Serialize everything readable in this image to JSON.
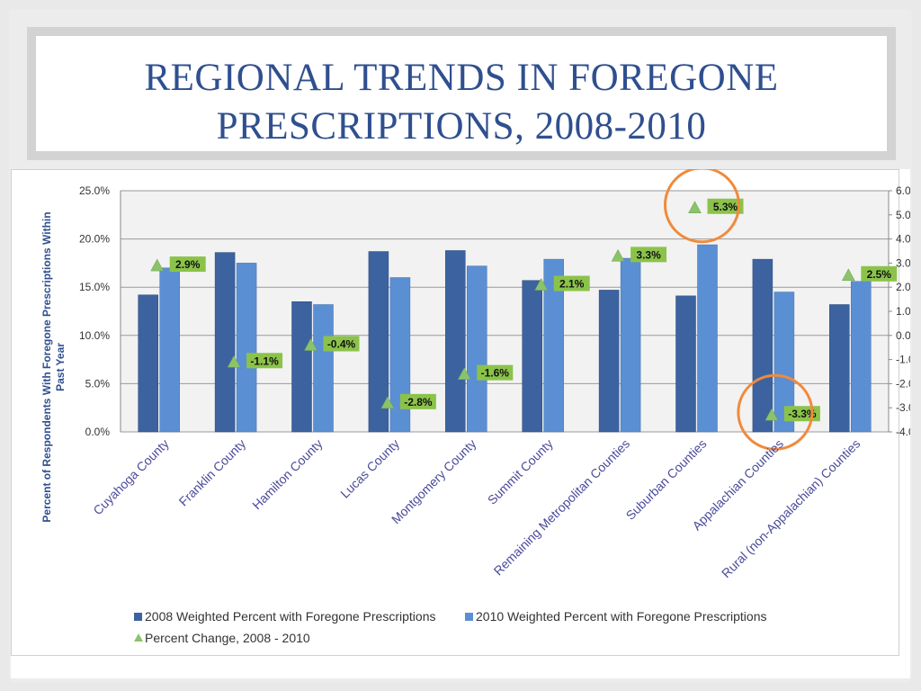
{
  "slide": {
    "title_line1": "REGIONAL TRENDS IN FOREGONE",
    "title_line2": "PRESCRIPTIONS, 2008-2010"
  },
  "colors": {
    "series_2008": "#3c63a0",
    "series_2010": "#5b8fd3",
    "change_marker": "#8bc36a",
    "label_bg": "#8bc34a",
    "highlight_circle": "#f08a3c",
    "title": "#2f4f8f"
  },
  "chart_data": {
    "type": "bar",
    "categories": [
      "Cuyahoga County",
      "Franklin County",
      "Hamilton County",
      "Lucas County",
      "Montgomery County",
      "Summit County",
      "Remaining Metropolitan Counties",
      "Suburban Counties",
      "Appalachian Counties",
      "Rural (non-Appalachian) Counties"
    ],
    "series": [
      {
        "name": "2008 Weighted Percent with Foregone Prescriptions",
        "axis": "left",
        "values": [
          14.2,
          18.6,
          13.5,
          18.7,
          18.8,
          15.7,
          14.7,
          14.1,
          17.9,
          13.2
        ]
      },
      {
        "name": "2010 Weighted Percent with Foregone Prescriptions",
        "axis": "left",
        "values": [
          17.0,
          17.5,
          13.2,
          16.0,
          17.2,
          17.9,
          18.0,
          19.4,
          14.5,
          15.6
        ]
      },
      {
        "name": "Percent Change, 2008 - 2010",
        "axis": "right",
        "values": [
          2.9,
          -1.1,
          -0.4,
          -2.8,
          -1.6,
          2.1,
          3.3,
          5.3,
          -3.3,
          2.5
        ],
        "labels": [
          "2.9%",
          "-1.1%",
          "-0.4%",
          "-2.8%",
          "-1.6%",
          "2.1%",
          "3.3%",
          "5.3%",
          "-3.3%",
          "2.5%"
        ]
      }
    ],
    "ylabel": "Percent of Respondents With Foregone Prescriptions Within Past Year",
    "ylim": [
      0,
      25
    ],
    "y_ticks": [
      "0.0%",
      "5.0%",
      "10.0%",
      "15.0%",
      "20.0%",
      "25.0%"
    ],
    "y2lim": [
      -4,
      6
    ],
    "y2_ticks": [
      "-4.0%",
      "-3.0%",
      "-2.0%",
      "-1.0%",
      "0.0%",
      "1.0%",
      "2.0%",
      "3.0%",
      "4.0%",
      "5.0%",
      "6.0%"
    ],
    "grid": true,
    "legend_position": "bottom",
    "highlighted_categories": [
      7,
      8
    ]
  }
}
